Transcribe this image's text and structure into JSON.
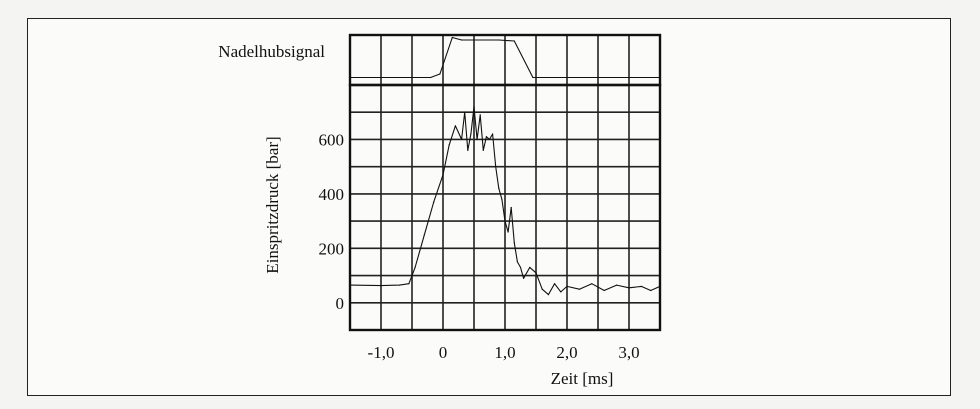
{
  "chart_data": [
    {
      "type": "line",
      "title": "Nadelhubsignal",
      "xlim": [
        -1.5,
        3.5
      ],
      "ylim": [
        0,
        1
      ],
      "grid": true,
      "series": [
        {
          "x": [
            -1.5,
            -0.2,
            -0.05,
            0.15,
            0.3,
            0.9,
            1.15,
            1.45,
            3.5
          ],
          "y": [
            0.15,
            0.15,
            0.22,
            0.95,
            0.9,
            0.9,
            0.88,
            0.15,
            0.15
          ]
        }
      ]
    },
    {
      "type": "line",
      "xlabel": "Zeit [ms]",
      "ylabel": "Einspritzdruck [bar]",
      "xticks": [
        -1.0,
        0,
        1.0,
        2.0,
        3.0
      ],
      "xtick_labels": [
        "-1,0",
        "0",
        "1,0",
        "2,0",
        "3,0"
      ],
      "yticks": [
        0,
        200,
        400,
        600
      ],
      "yticks_labels": [
        "0",
        "200",
        "400",
        "600"
      ],
      "xlim": [
        -1.5,
        3.5
      ],
      "ylim": [
        -100,
        800
      ],
      "grid": true,
      "series": [
        {
          "x": [
            -1.5,
            -1.0,
            -0.7,
            -0.55,
            -0.45,
            -0.3,
            -0.15,
            0.0,
            0.1,
            0.2,
            0.3,
            0.35,
            0.4,
            0.45,
            0.5,
            0.55,
            0.6,
            0.65,
            0.7,
            0.75,
            0.8,
            0.85,
            0.9,
            0.95,
            1.0,
            1.05,
            1.1,
            1.15,
            1.2,
            1.25,
            1.3,
            1.4,
            1.5,
            1.6,
            1.7,
            1.8,
            1.9,
            2.0,
            2.2,
            2.4,
            2.6,
            2.8,
            3.0,
            3.2,
            3.35,
            3.5
          ],
          "y": [
            65,
            63,
            65,
            70,
            130,
            250,
            370,
            470,
            580,
            650,
            600,
            700,
            560,
            620,
            720,
            600,
            690,
            560,
            610,
            600,
            620,
            500,
            420,
            380,
            300,
            260,
            350,
            220,
            150,
            130,
            90,
            130,
            110,
            50,
            30,
            70,
            40,
            60,
            50,
            70,
            45,
            65,
            55,
            60,
            45,
            60
          ]
        }
      ]
    }
  ],
  "labels": {
    "nadelhub_title": "Nadelhubsignal",
    "ylabel": "Einspritzdruck [bar]",
    "xlabel": "Zeit [ms]"
  }
}
